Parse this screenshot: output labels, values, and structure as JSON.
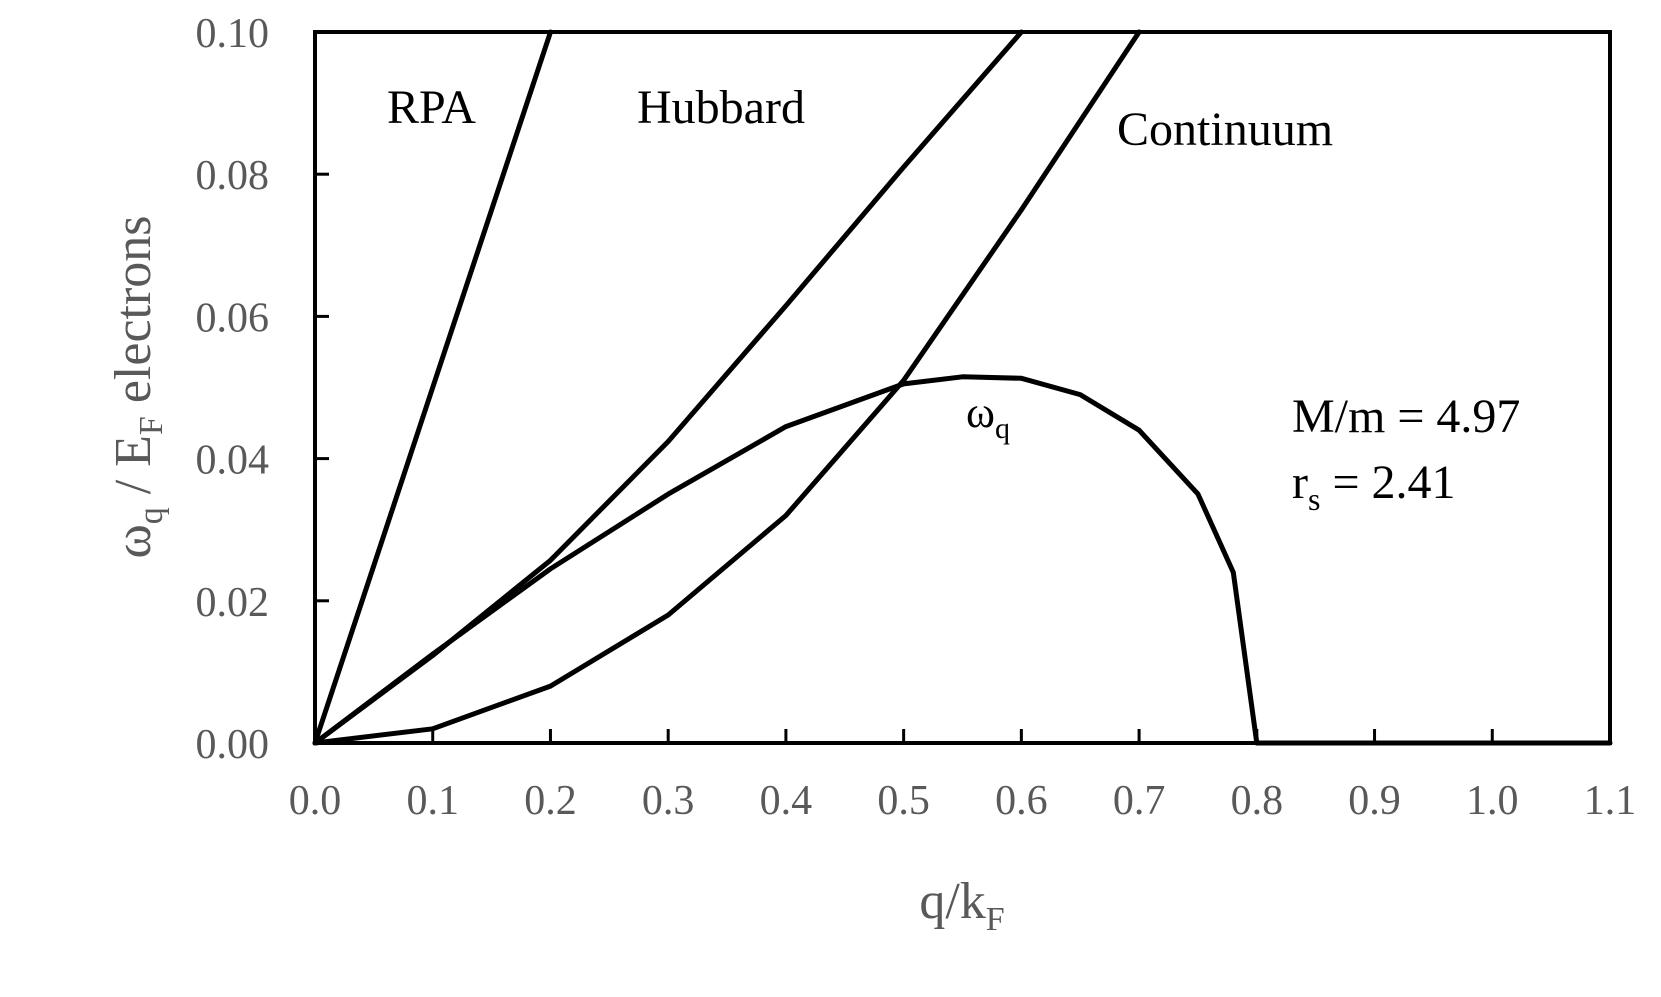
{
  "chart_data": {
    "type": "line",
    "xlabel_main": "q/k",
    "xlabel_sub": "F",
    "ylabel": {
      "omega": "ω",
      "q_sub": "q",
      "slash": " / E",
      "f_sub": "F",
      "tail": " electrons"
    },
    "xlim": [
      0.0,
      1.1
    ],
    "ylim": [
      0.0,
      0.1
    ],
    "x_ticks": [
      0.0,
      0.1,
      0.2,
      0.3,
      0.4,
      0.5,
      0.6,
      0.7,
      0.8,
      0.9,
      1.0,
      1.1
    ],
    "x_tick_labels": [
      "0.0",
      "0.1",
      "0.2",
      "0.3",
      "0.4",
      "0.5",
      "0.6",
      "0.7",
      "0.8",
      "0.9",
      "1.0",
      "1.1"
    ],
    "y_ticks": [
      0.0,
      0.02,
      0.04,
      0.06,
      0.08,
      0.1
    ],
    "y_tick_labels": [
      "0.00",
      "0.02",
      "0.04",
      "0.06",
      "0.08",
      "0.10"
    ],
    "grid": false,
    "legend": "none",
    "series": [
      {
        "name": "RPA",
        "x": [
          0.0,
          0.05,
          0.1,
          0.15,
          0.2
        ],
        "y": [
          0.0,
          0.025,
          0.05,
          0.075,
          0.1
        ]
      },
      {
        "name": "Hubbard",
        "x": [
          0.0,
          0.1,
          0.2,
          0.3,
          0.4,
          0.5,
          0.6
        ],
        "y": [
          0.0,
          0.0123,
          0.0257,
          0.0424,
          0.0615,
          0.081,
          0.1
        ]
      },
      {
        "name": "Continuum",
        "x": [
          0.0,
          0.1,
          0.2,
          0.3,
          0.4,
          0.5,
          0.6,
          0.7
        ],
        "y": [
          0.0,
          0.002,
          0.008,
          0.018,
          0.032,
          0.051,
          0.075,
          0.1
        ]
      },
      {
        "name": "ω_q",
        "x": [
          0.0,
          0.1,
          0.2,
          0.3,
          0.4,
          0.5,
          0.55,
          0.6,
          0.65,
          0.7,
          0.75,
          0.78,
          0.8,
          0.85,
          0.9,
          1.0,
          1.1
        ],
        "y": [
          0.0,
          0.0125,
          0.0245,
          0.035,
          0.0445,
          0.0505,
          0.0515,
          0.0513,
          0.049,
          0.044,
          0.035,
          0.024,
          0.0,
          0.0,
          0.0,
          0.0,
          0.0
        ]
      }
    ],
    "annotations": {
      "rpa": "RPA",
      "hubbard": "Hubbard",
      "continuum": "Continuum",
      "omega_main": "ω",
      "omega_sub": "q",
      "mass_ratio": "M/m = 4.97",
      "rs_main": "r",
      "rs_sub": "s",
      "rs_value": " = 2.41"
    }
  }
}
